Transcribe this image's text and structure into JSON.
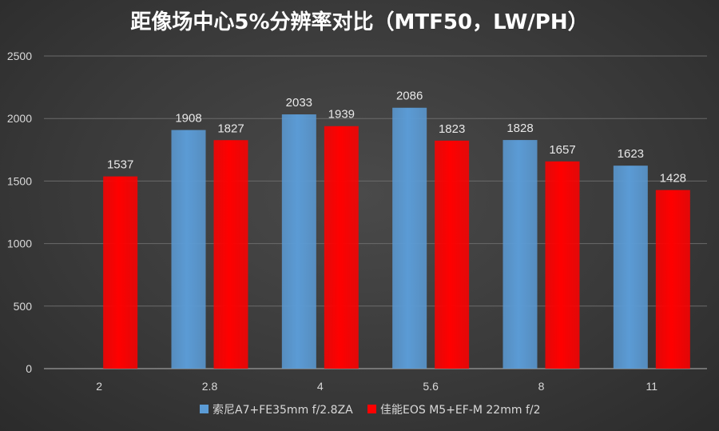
{
  "chart_data": {
    "type": "bar",
    "title": "距像场中心5%分辨率对比（MTF50，LW/PH）",
    "xlabel": "",
    "ylabel": "",
    "categories": [
      "2",
      "2.8",
      "4",
      "5.6",
      "8",
      "11"
    ],
    "series": [
      {
        "name": "索尼A7+FE35mm f/2.8ZA",
        "color": "#5b9bd5",
        "values": [
          null,
          1908,
          2033,
          2086,
          1828,
          1623
        ]
      },
      {
        "name": "佳能EOS M5+EF-M 22mm f/2",
        "color": "#ff0000",
        "values": [
          1537,
          1827,
          1939,
          1823,
          1657,
          1428
        ]
      }
    ],
    "ylim": [
      0,
      2500
    ],
    "yticks": [
      0,
      500,
      1000,
      1500,
      2000,
      2500
    ],
    "grid": true,
    "legend": "bottom"
  }
}
